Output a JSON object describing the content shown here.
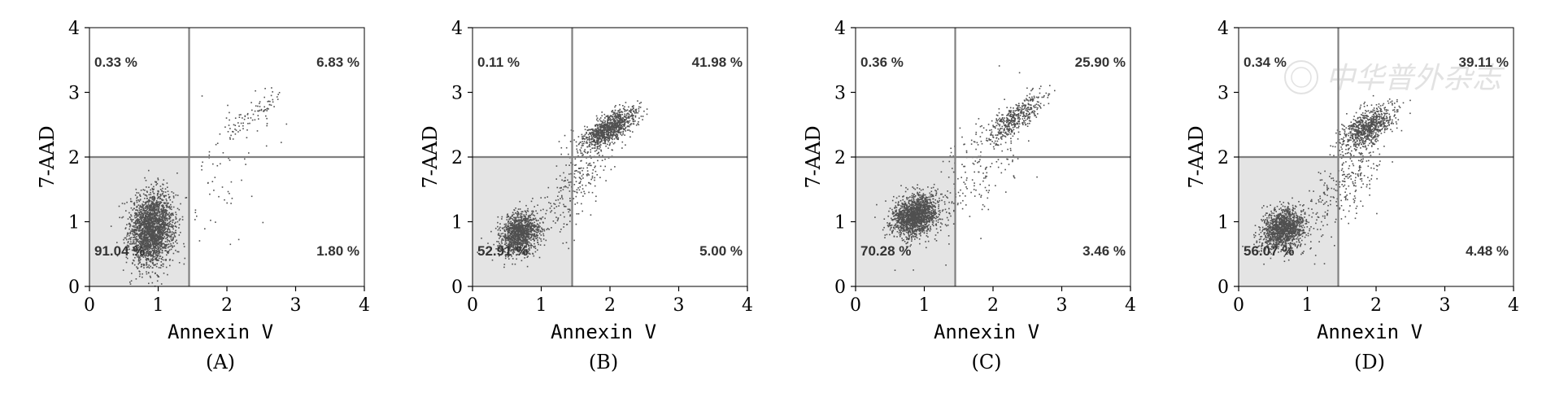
{
  "chart_data": [
    {
      "type": "scatter",
      "panel_label": "(A)",
      "xlabel": "Annexin V",
      "ylabel": "7-AAD",
      "xlim": [
        0,
        4
      ],
      "ylim": [
        0,
        4
      ],
      "xticks": [
        0,
        1,
        2,
        3,
        4
      ],
      "yticks": [
        0,
        1,
        2,
        3,
        4
      ],
      "gate": {
        "x": 1.45,
        "y": 2.0
      },
      "quadrants": {
        "upper_left": "0.33 %",
        "upper_right": "6.83 %",
        "lower_left": "91.04 %",
        "lower_right": "1.80 %"
      },
      "clusters": [
        {
          "cx": 0.9,
          "cy": 0.9,
          "sx": 0.16,
          "sy": 0.28,
          "n": 2200,
          "rho": 0.1
        },
        {
          "cx": 2.35,
          "cy": 2.65,
          "sx": 0.22,
          "sy": 0.18,
          "n": 80,
          "rho": 0.85
        },
        {
          "cx": 1.9,
          "cy": 1.7,
          "sx": 0.4,
          "sy": 0.6,
          "n": 70,
          "rho": 0.6
        }
      ]
    },
    {
      "type": "scatter",
      "panel_label": "(B)",
      "xlabel": "Annexin V",
      "ylabel": "7-AAD",
      "xlim": [
        0,
        4
      ],
      "ylim": [
        0,
        4
      ],
      "xticks": [
        0,
        1,
        2,
        3,
        4
      ],
      "yticks": [
        0,
        1,
        2,
        3,
        4
      ],
      "gate": {
        "x": 1.45,
        "y": 2.0
      },
      "quadrants": {
        "upper_left": "0.11 %",
        "upper_right": "41.98 %",
        "lower_left": "52.91 %",
        "lower_right": "5.00 %"
      },
      "clusters": [
        {
          "cx": 0.68,
          "cy": 0.82,
          "sx": 0.14,
          "sy": 0.16,
          "n": 1200,
          "rho": 0.2
        },
        {
          "cx": 1.98,
          "cy": 2.45,
          "sx": 0.2,
          "sy": 0.16,
          "n": 1000,
          "rho": 0.7
        },
        {
          "cx": 1.5,
          "cy": 1.6,
          "sx": 0.3,
          "sy": 0.45,
          "n": 260,
          "rho": 0.75
        }
      ]
    },
    {
      "type": "scatter",
      "panel_label": "(C)",
      "xlabel": "Annexin V",
      "ylabel": "7-AAD",
      "xlim": [
        0,
        4
      ],
      "ylim": [
        0,
        4
      ],
      "xticks": [
        0,
        1,
        2,
        3,
        4
      ],
      "yticks": [
        0,
        1,
        2,
        3,
        4
      ],
      "gate": {
        "x": 1.45,
        "y": 2.0
      },
      "quadrants": {
        "upper_left": "0.36 %",
        "upper_right": "25.90 %",
        "lower_left": "70.28 %",
        "lower_right": "3.46 %"
      },
      "clusters": [
        {
          "cx": 0.85,
          "cy": 1.1,
          "sx": 0.17,
          "sy": 0.16,
          "n": 1600,
          "rho": 0.2
        },
        {
          "cx": 2.3,
          "cy": 2.6,
          "sx": 0.2,
          "sy": 0.18,
          "n": 450,
          "rho": 0.75
        },
        {
          "cx": 1.7,
          "cy": 1.7,
          "sx": 0.35,
          "sy": 0.5,
          "n": 200,
          "rho": 0.6
        }
      ]
    },
    {
      "type": "scatter",
      "panel_label": "(D)",
      "xlabel": "Annexin V",
      "ylabel": "7-AAD",
      "xlim": [
        0,
        4
      ],
      "ylim": [
        0,
        4
      ],
      "xticks": [
        0,
        1,
        2,
        3,
        4
      ],
      "yticks": [
        0,
        1,
        2,
        3,
        4
      ],
      "gate": {
        "x": 1.45,
        "y": 2.0
      },
      "quadrants": {
        "upper_left": "0.34 %",
        "upper_right": "39.11 %",
        "lower_left": "56.07 %",
        "lower_right": "4.48 %"
      },
      "clusters": [
        {
          "cx": 0.65,
          "cy": 0.9,
          "sx": 0.16,
          "sy": 0.16,
          "n": 1300,
          "rho": 0.2
        },
        {
          "cx": 1.85,
          "cy": 2.45,
          "sx": 0.2,
          "sy": 0.17,
          "n": 800,
          "rho": 0.6
        },
        {
          "cx": 1.55,
          "cy": 1.6,
          "sx": 0.3,
          "sy": 0.45,
          "n": 260,
          "rho": 0.7
        }
      ]
    }
  ],
  "watermark": "中华普外杂志",
  "colors": {
    "dots": "#505050",
    "gate_lines": "#808080",
    "lower_left_fill": "#e4e4e4",
    "axis": "#000000",
    "quadrant_text": "#333333"
  }
}
